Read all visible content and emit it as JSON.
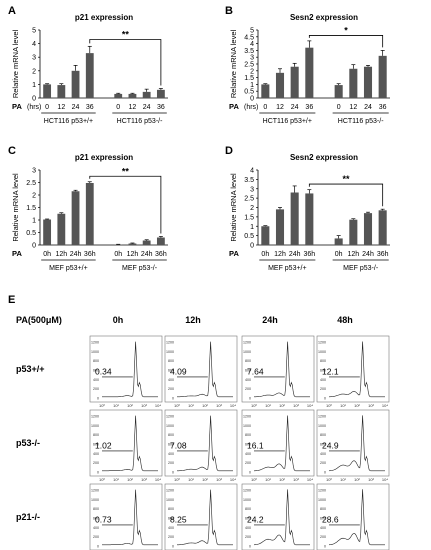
{
  "panels": [
    {
      "letter": "A",
      "title": "p21 expression",
      "ylabel": "Relative mRNA level",
      "xprefix": "PA",
      "xunit": "(hrs)",
      "categories": [
        "0",
        "12",
        "24",
        "36",
        "0",
        "12",
        "24",
        "36"
      ],
      "groups": [
        "HCT116 p53+/+",
        "HCT116 p53-/-"
      ],
      "yticks": [
        "0",
        "1",
        "2",
        "3",
        "4",
        "5"
      ],
      "ylim": [
        0,
        5
      ],
      "values": [
        1.0,
        0.95,
        2.0,
        3.3,
        0.3,
        0.3,
        0.45,
        0.6
      ],
      "errors": [
        0.05,
        0.1,
        0.4,
        0.5,
        0.05,
        0.05,
        0.2,
        0.1
      ],
      "sig": {
        "label": "**",
        "from": 3,
        "to": 7,
        "y": 4.3
      }
    },
    {
      "letter": "B",
      "title": "Sesn2 expression",
      "ylabel": "Relative mRNA level",
      "xprefix": "PA",
      "xunit": "(hrs)",
      "categories": [
        "0",
        "12",
        "24",
        "36",
        "0",
        "12",
        "24",
        "36"
      ],
      "groups": [
        "HCT116 p53+/+",
        "HCT116 p53-/-"
      ],
      "yticks": [
        "0",
        "0.5",
        "1",
        "1.5",
        "2",
        "2.5",
        "3",
        "3.5",
        "4",
        "4.5",
        "5"
      ],
      "ylim": [
        0,
        5
      ],
      "values": [
        1.0,
        1.85,
        2.3,
        3.7,
        0.95,
        2.15,
        2.3,
        3.1
      ],
      "errors": [
        0.05,
        0.3,
        0.25,
        0.5,
        0.1,
        0.3,
        0.1,
        0.4
      ],
      "sig": {
        "label": "*",
        "from": 3,
        "to": 7,
        "y": 4.6
      }
    },
    {
      "letter": "C",
      "title": "p21 expression",
      "ylabel": "Relative mRNA level",
      "xprefix": "PA",
      "categories": [
        "0h",
        "12h",
        "24h",
        "36h",
        "0h",
        "12h",
        "24h",
        "36h"
      ],
      "groups": [
        "MEF p53+/+",
        "MEF p53-/-"
      ],
      "yticks": [
        "0",
        "0.5",
        "1",
        "1.5",
        "2",
        "2.5",
        "3"
      ],
      "ylim": [
        0,
        3
      ],
      "values": [
        1.02,
        1.25,
        2.15,
        2.48,
        0.02,
        0.06,
        0.18,
        0.3
      ],
      "errors": [
        0.02,
        0.04,
        0.04,
        0.05,
        0.01,
        0.02,
        0.03,
        0.04
      ],
      "sig": {
        "label": "**",
        "from": 3,
        "to": 7,
        "y": 2.75
      }
    },
    {
      "letter": "D",
      "title": "Sesn2 expression",
      "ylabel": "Relative mRNA level",
      "xprefix": "PA",
      "categories": [
        "0h",
        "12h",
        "24h",
        "36h",
        "0h",
        "12h",
        "24h",
        "36h"
      ],
      "groups": [
        "MEF p53+/+",
        "MEF p53-/-"
      ],
      "yticks": [
        "0",
        "0.5",
        "1",
        "1.5",
        "2",
        "2.5",
        "3",
        "3.5",
        "4"
      ],
      "ylim": [
        0,
        4
      ],
      "values": [
        1.0,
        1.9,
        2.8,
        2.75,
        0.35,
        1.35,
        1.7,
        1.85
      ],
      "errors": [
        0.03,
        0.1,
        0.35,
        0.2,
        0.15,
        0.05,
        0.05,
        0.06
      ],
      "sig": {
        "label": "**",
        "from": 3,
        "to": 7,
        "y": 3.25
      }
    }
  ],
  "panel_e": {
    "letter": "E",
    "treatment": "PA(500μM)",
    "timepoints": [
      "0h",
      "12h",
      "24h",
      "48h"
    ],
    "genotypes": [
      "p53+/+",
      "p53-/-",
      "p21-/-"
    ],
    "values": [
      [
        "0.34",
        "4.09",
        "7.64",
        "12.1"
      ],
      [
        "1.02",
        "7.08",
        "16.1",
        "24.9"
      ],
      [
        "0.73",
        "8.25",
        "24.2",
        "28.6"
      ]
    ],
    "yticks": [
      "0",
      "200",
      "400",
      "600",
      "800",
      "1000",
      "1200"
    ],
    "xticks": [
      "10⁰",
      "10¹",
      "10²",
      "10³",
      "10⁴"
    ]
  },
  "chart_data": [
    {
      "type": "bar",
      "title": "p21 expression",
      "ylabel": "Relative mRNA level",
      "xlabel": "PA (hrs)",
      "categories": [
        "0",
        "12",
        "24",
        "36",
        "0",
        "12",
        "24",
        "36"
      ],
      "groups": [
        "HCT116 p53+/+",
        "HCT116 p53-/-"
      ],
      "values": [
        1.0,
        0.95,
        2.0,
        3.3,
        0.3,
        0.3,
        0.45,
        0.6
      ],
      "ylim": [
        0,
        5
      ]
    },
    {
      "type": "bar",
      "title": "Sesn2 expression",
      "ylabel": "Relative mRNA level",
      "xlabel": "PA (hrs)",
      "categories": [
        "0",
        "12",
        "24",
        "36",
        "0",
        "12",
        "24",
        "36"
      ],
      "groups": [
        "HCT116 p53+/+",
        "HCT116 p53-/-"
      ],
      "values": [
        1.0,
        1.85,
        2.3,
        3.7,
        0.95,
        2.15,
        2.3,
        3.1
      ],
      "ylim": [
        0,
        5
      ]
    },
    {
      "type": "bar",
      "title": "p21 expression",
      "ylabel": "Relative mRNA level",
      "xlabel": "PA",
      "categories": [
        "0h",
        "12h",
        "24h",
        "36h",
        "0h",
        "12h",
        "24h",
        "36h"
      ],
      "groups": [
        "MEF p53+/+",
        "MEF p53-/-"
      ],
      "values": [
        1.02,
        1.25,
        2.15,
        2.48,
        0.02,
        0.06,
        0.18,
        0.3
      ],
      "ylim": [
        0,
        3
      ]
    },
    {
      "type": "bar",
      "title": "Sesn2 expression",
      "ylabel": "Relative mRNA level",
      "xlabel": "PA",
      "categories": [
        "0h",
        "12h",
        "24h",
        "36h",
        "0h",
        "12h",
        "24h",
        "36h"
      ],
      "groups": [
        "MEF p53+/+",
        "MEF p53-/-"
      ],
      "values": [
        1.0,
        1.9,
        2.8,
        2.75,
        0.35,
        1.35,
        1.7,
        1.85
      ],
      "ylim": [
        0,
        4
      ]
    }
  ]
}
